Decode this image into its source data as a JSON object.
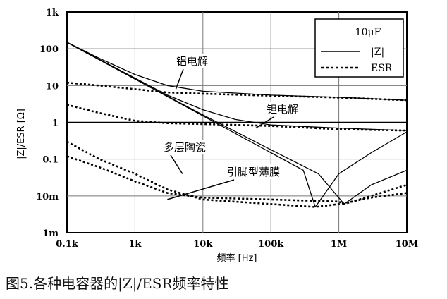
{
  "chart_data": {
    "type": "line",
    "xlabel": "频率 [Hz]",
    "ylabel": "|Z|/ESR [Ω]",
    "x_scale": "log",
    "y_scale": "log",
    "xlim": [
      100,
      10000000
    ],
    "ylim": [
      0.001,
      1000
    ],
    "grid": true,
    "x_ticks": [
      {
        "value": 100,
        "label": "0.1k"
      },
      {
        "value": 1000,
        "label": "1k"
      },
      {
        "value": 10000,
        "label": "10k"
      },
      {
        "value": 100000,
        "label": "100k"
      },
      {
        "value": 1000000,
        "label": "1M"
      },
      {
        "value": 10000000,
        "label": "10M"
      }
    ],
    "y_ticks": [
      {
        "value": 1000,
        "label": "1k"
      },
      {
        "value": 100,
        "label": "100"
      },
      {
        "value": 10,
        "label": "10"
      },
      {
        "value": 1,
        "label": "1"
      },
      {
        "value": 0.1,
        "label": "0.1"
      },
      {
        "value": 0.01,
        "label": "10m"
      },
      {
        "value": 0.001,
        "label": "1m"
      }
    ],
    "legend": {
      "title": "10μF",
      "position": "top-right",
      "entries": [
        {
          "label": "|Z|",
          "style": "solid"
        },
        {
          "label": "ESR",
          "style": "dashed"
        }
      ]
    },
    "series": [
      {
        "group": "铝电解",
        "kind": "|Z|",
        "style": "solid",
        "points": [
          [
            100,
            150
          ],
          [
            300,
            55
          ],
          [
            1000,
            20
          ],
          [
            3000,
            10
          ],
          [
            10000,
            7
          ],
          [
            100000,
            5.5
          ],
          [
            1000000,
            4.8
          ],
          [
            10000000,
            4
          ]
        ]
      },
      {
        "group": "铝电解",
        "kind": "ESR",
        "style": "dashed",
        "points": [
          [
            100,
            12
          ],
          [
            300,
            10
          ],
          [
            1000,
            8
          ],
          [
            3000,
            6.5
          ],
          [
            10000,
            6
          ],
          [
            100000,
            5.3
          ],
          [
            1000000,
            4.7
          ],
          [
            10000000,
            4
          ]
        ]
      },
      {
        "group": "钽电解",
        "kind": "|Z|",
        "style": "solid",
        "points": [
          [
            100,
            150
          ],
          [
            1000,
            16
          ],
          [
            3000,
            5.5
          ],
          [
            10000,
            2.2
          ],
          [
            30000,
            1.2
          ],
          [
            100000,
            0.85
          ],
          [
            1000000,
            0.7
          ],
          [
            10000000,
            0.6
          ]
        ]
      },
      {
        "group": "钽电解",
        "kind": "ESR",
        "style": "dashed",
        "points": [
          [
            100,
            3
          ],
          [
            300,
            1.8
          ],
          [
            1000,
            1.1
          ],
          [
            3000,
            0.95
          ],
          [
            10000,
            0.9
          ],
          [
            100000,
            0.8
          ],
          [
            1000000,
            0.65
          ],
          [
            10000000,
            0.6
          ]
        ]
      },
      {
        "group": "多层陶瓷",
        "kind": "|Z|",
        "style": "solid",
        "points": [
          [
            100,
            150
          ],
          [
            1000,
            15
          ],
          [
            10000,
            1.5
          ],
          [
            100000,
            0.15
          ],
          [
            300000,
            0.05
          ],
          [
            450000,
            0.005
          ],
          [
            1000000,
            0.04
          ],
          [
            3000000,
            0.15
          ],
          [
            10000000,
            0.55
          ]
        ]
      },
      {
        "group": "多层陶瓷",
        "kind": "ESR",
        "style": "dashed",
        "points": [
          [
            100,
            0.3
          ],
          [
            300,
            0.1
          ],
          [
            1000,
            0.04
          ],
          [
            3000,
            0.015
          ],
          [
            10000,
            0.008
          ],
          [
            100000,
            0.006
          ],
          [
            450000,
            0.005
          ],
          [
            1000000,
            0.006
          ],
          [
            3000000,
            0.009
          ],
          [
            10000000,
            0.012
          ]
        ]
      },
      {
        "group": "引脚型薄膜",
        "kind": "|Z|",
        "style": "solid",
        "points": [
          [
            100,
            150
          ],
          [
            1000,
            15
          ],
          [
            10000,
            1.6
          ],
          [
            100000,
            0.18
          ],
          [
            500000,
            0.04
          ],
          [
            1200000,
            0.006
          ],
          [
            3000000,
            0.02
          ],
          [
            10000000,
            0.05
          ]
        ]
      },
      {
        "group": "引脚型薄膜",
        "kind": "ESR",
        "style": "dashed",
        "points": [
          [
            100,
            0.12
          ],
          [
            300,
            0.06
          ],
          [
            1000,
            0.025
          ],
          [
            3000,
            0.012
          ],
          [
            10000,
            0.009
          ],
          [
            100000,
            0.008
          ],
          [
            1000000,
            0.007
          ],
          [
            1200000,
            0.006
          ],
          [
            3000000,
            0.01
          ],
          [
            10000000,
            0.02
          ]
        ]
      }
    ],
    "annotations": [
      {
        "text": "铝电解",
        "target": [
          4000,
          8
        ]
      },
      {
        "text": "钽电解",
        "target": [
          60000,
          0.7
        ]
      },
      {
        "text": "多层陶瓷",
        "target": [
          5000,
          0.04
        ]
      },
      {
        "text": "引脚型薄膜",
        "target": [
          3000,
          0.008
        ]
      }
    ]
  },
  "caption": "图5.各种电容器的|Z|/ESR频率特性"
}
